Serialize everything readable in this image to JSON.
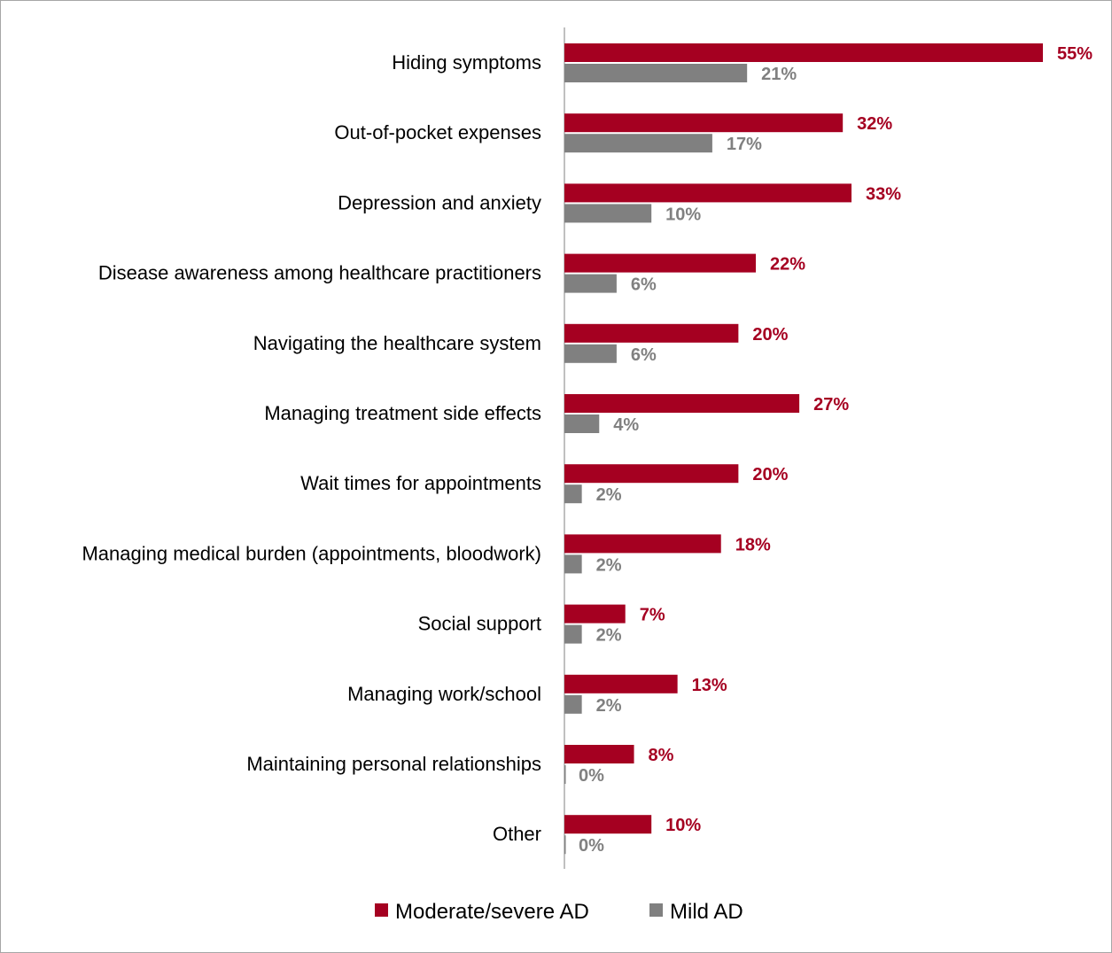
{
  "chart_data": {
    "type": "bar",
    "orientation": "horizontal",
    "categories": [
      "Hiding symptoms",
      "Out-of-pocket expenses",
      "Depression and anxiety",
      "Disease awareness among healthcare practitioners",
      "Navigating the healthcare system",
      "Managing treatment side effects",
      "Wait times for appointments",
      "Managing medical burden (appointments, bloodwork)",
      "Social support",
      "Managing work/school",
      "Maintaining personal relationships",
      "Other"
    ],
    "series": [
      {
        "name": "Moderate/severe AD",
        "color": "#a50021",
        "values": [
          55,
          32,
          33,
          22,
          20,
          27,
          20,
          18,
          7,
          13,
          8,
          10
        ],
        "labels": [
          "55%",
          "32%",
          "33%",
          "22%",
          "20%",
          "27%",
          "20%",
          "18%",
          "7%",
          "13%",
          "8%",
          "10%"
        ]
      },
      {
        "name": "Mild AD",
        "color": "#808080",
        "values": [
          21,
          17,
          10,
          6,
          6,
          4,
          2,
          2,
          2,
          2,
          0,
          0
        ],
        "labels": [
          "21%",
          "17%",
          "10%",
          "6%",
          "6%",
          "4%",
          "2%",
          "2%",
          "2%",
          "2%",
          "0%",
          "0%"
        ]
      }
    ],
    "title": "",
    "xlabel": "",
    "ylabel": "",
    "xlim": [
      0,
      55
    ],
    "grid": false,
    "legend": "bottom-center"
  }
}
